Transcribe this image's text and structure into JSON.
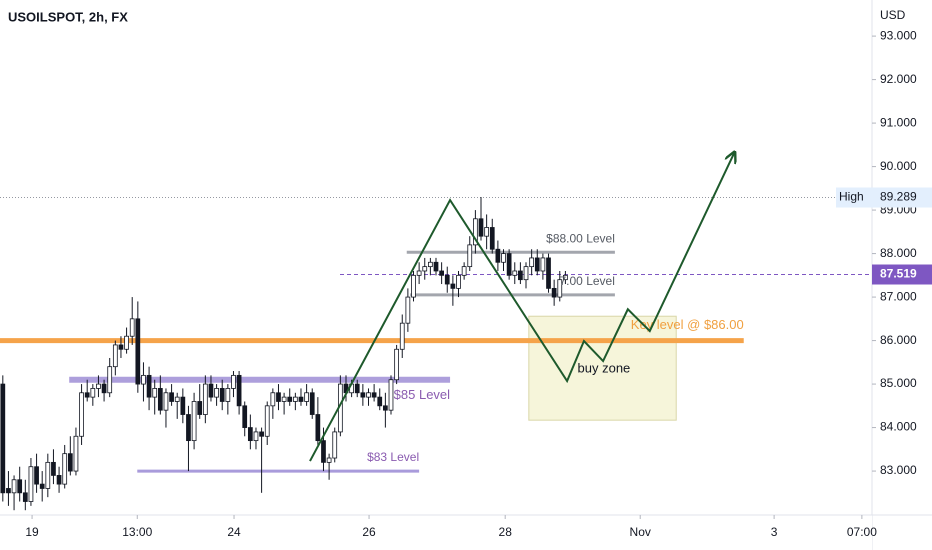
{
  "chart_data": {
    "type": "candlestick",
    "title": "USOILSPOT, 2h, FX",
    "currency": "USD",
    "xlim": [
      -0.5,
      154.5
    ],
    "xticks": [
      {
        "value": 5.2,
        "label": "19"
      },
      {
        "value": 23.9,
        "label": "13:00"
      },
      {
        "value": 41.1,
        "label": "24"
      },
      {
        "value": 65.1,
        "label": "26"
      },
      {
        "value": 89.3,
        "label": "28"
      },
      {
        "value": 113.3,
        "label": "Nov"
      },
      {
        "value": 137.1,
        "label": "3"
      },
      {
        "value": 152.7,
        "label": "07:00"
      }
    ],
    "ylim": [
      81.99,
      93.83
    ],
    "yticks": [
      {
        "value": 83,
        "label": "83.000"
      },
      {
        "value": 84,
        "label": "84.000"
      },
      {
        "value": 85,
        "label": "85.000"
      },
      {
        "value": 86,
        "label": "86.000"
      },
      {
        "value": 87,
        "label": "87.000"
      },
      {
        "value": 88,
        "label": "88.000"
      },
      {
        "value": 89,
        "label": "89.000"
      },
      {
        "value": 90,
        "label": "90.000"
      },
      {
        "value": 91,
        "label": "91.000"
      },
      {
        "value": 92,
        "label": "92.000"
      },
      {
        "value": 93,
        "label": "93.000"
      }
    ],
    "up_color": "#ffffff",
    "down_color": "#131722",
    "ohlc": [
      [
        85.0,
        85.2,
        82.3,
        82.5
      ],
      [
        82.6,
        83.0,
        82.2,
        82.5
      ],
      [
        82.5,
        82.9,
        82.1,
        82.8
      ],
      [
        82.8,
        83.1,
        82.3,
        82.5
      ],
      [
        82.5,
        82.8,
        82.1,
        82.3
      ],
      [
        82.3,
        83.3,
        82.2,
        83.1
      ],
      [
        83.1,
        83.4,
        82.5,
        82.7
      ],
      [
        82.7,
        83.0,
        82.3,
        82.6
      ],
      [
        82.6,
        83.4,
        82.4,
        83.2
      ],
      [
        83.2,
        83.5,
        82.7,
        82.9
      ],
      [
        82.9,
        83.1,
        82.5,
        82.7
      ],
      [
        82.7,
        83.6,
        82.6,
        83.4
      ],
      [
        83.4,
        83.8,
        82.9,
        83.0
      ],
      [
        83.0,
        84.0,
        82.9,
        83.8
      ],
      [
        83.8,
        85.0,
        83.6,
        84.8
      ],
      [
        84.8,
        85.1,
        84.6,
        84.7
      ],
      [
        84.7,
        85.0,
        84.5,
        84.9
      ],
      [
        84.9,
        85.2,
        84.7,
        85.0
      ],
      [
        85.0,
        85.1,
        84.6,
        84.8
      ],
      [
        84.8,
        85.6,
        84.7,
        85.4
      ],
      [
        85.4,
        86.0,
        85.2,
        85.9
      ],
      [
        85.9,
        86.1,
        85.6,
        85.8
      ],
      [
        85.8,
        86.3,
        85.7,
        86.1
      ],
      [
        86.1,
        87.0,
        85.9,
        86.5
      ],
      [
        86.5,
        86.9,
        84.8,
        85.0
      ],
      [
        85.0,
        85.5,
        84.6,
        85.2
      ],
      [
        85.2,
        85.4,
        84.4,
        84.7
      ],
      [
        84.7,
        85.1,
        84.3,
        84.9
      ],
      [
        84.9,
        85.2,
        84.3,
        84.4
      ],
      [
        84.4,
        84.9,
        84.0,
        84.8
      ],
      [
        84.8,
        85.0,
        84.5,
        84.6
      ],
      [
        84.6,
        84.8,
        84.2,
        84.7
      ],
      [
        84.7,
        84.9,
        84.1,
        84.3
      ],
      [
        84.3,
        84.5,
        83.0,
        83.7
      ],
      [
        83.7,
        84.8,
        83.5,
        84.6
      ],
      [
        84.6,
        85.0,
        84.2,
        84.3
      ],
      [
        84.3,
        85.2,
        84.1,
        85.0
      ],
      [
        85.0,
        85.2,
        84.6,
        84.7
      ],
      [
        84.7,
        85.0,
        84.5,
        84.9
      ],
      [
        84.9,
        85.1,
        84.4,
        84.6
      ],
      [
        84.6,
        85.0,
        84.3,
        84.9
      ],
      [
        84.9,
        85.3,
        84.7,
        85.2
      ],
      [
        85.2,
        85.3,
        84.3,
        84.5
      ],
      [
        84.5,
        84.6,
        83.8,
        84.0
      ],
      [
        84.0,
        84.3,
        83.5,
        83.7
      ],
      [
        83.7,
        84.0,
        83.5,
        83.9
      ],
      [
        83.9,
        84.0,
        82.5,
        83.8
      ],
      [
        83.8,
        84.6,
        83.6,
        84.5
      ],
      [
        84.5,
        84.9,
        84.2,
        84.8
      ],
      [
        84.8,
        85.0,
        84.4,
        84.6
      ],
      [
        84.6,
        84.8,
        84.3,
        84.7
      ],
      [
        84.7,
        84.9,
        84.5,
        84.6
      ],
      [
        84.6,
        84.8,
        84.4,
        84.7
      ],
      [
        84.7,
        84.9,
        84.5,
        84.6
      ],
      [
        84.6,
        85.0,
        84.5,
        84.8
      ],
      [
        84.8,
        84.9,
        84.2,
        84.3
      ],
      [
        84.3,
        84.7,
        83.6,
        83.7
      ],
      [
        83.7,
        84.0,
        83.0,
        83.2
      ],
      [
        83.2,
        83.4,
        82.8,
        83.3
      ],
      [
        83.3,
        84.0,
        83.2,
        83.9
      ],
      [
        83.9,
        85.2,
        83.8,
        85.0
      ],
      [
        85.0,
        85.2,
        84.6,
        84.8
      ],
      [
        84.8,
        85.1,
        84.7,
        85.0
      ],
      [
        85.0,
        85.1,
        84.7,
        84.8
      ],
      [
        84.8,
        85.0,
        84.5,
        84.7
      ],
      [
        84.7,
        84.9,
        84.5,
        84.8
      ],
      [
        84.8,
        85.0,
        84.6,
        84.7
      ],
      [
        84.7,
        84.9,
        84.4,
        84.5
      ],
      [
        84.5,
        84.8,
        84.0,
        84.4
      ],
      [
        84.4,
        85.2,
        84.3,
        85.1
      ],
      [
        85.1,
        85.9,
        85.0,
        85.8
      ],
      [
        85.8,
        86.6,
        85.6,
        86.4
      ],
      [
        86.4,
        87.2,
        86.2,
        87.0
      ],
      [
        87.0,
        87.6,
        86.9,
        87.5
      ],
      [
        87.5,
        87.8,
        87.3,
        87.6
      ],
      [
        87.6,
        87.9,
        87.4,
        87.7
      ],
      [
        87.7,
        87.9,
        87.5,
        87.8
      ],
      [
        87.8,
        87.9,
        87.5,
        87.6
      ],
      [
        87.6,
        87.8,
        87.3,
        87.5
      ],
      [
        87.5,
        87.7,
        87.1,
        87.3
      ],
      [
        87.3,
        87.5,
        86.8,
        87.2
      ],
      [
        87.2,
        87.6,
        87.0,
        87.5
      ],
      [
        87.5,
        87.8,
        87.4,
        87.7
      ],
      [
        87.7,
        88.4,
        87.6,
        88.2
      ],
      [
        88.2,
        89.0,
        88.0,
        88.8
      ],
      [
        88.8,
        89.3,
        88.3,
        88.4
      ],
      [
        88.4,
        88.9,
        88.1,
        88.6
      ],
      [
        88.6,
        88.8,
        88.0,
        88.1
      ],
      [
        88.1,
        88.3,
        87.6,
        87.8
      ],
      [
        87.8,
        88.1,
        87.6,
        88.0
      ],
      [
        88.0,
        88.1,
        87.4,
        87.5
      ],
      [
        87.5,
        87.8,
        87.3,
        87.6
      ],
      [
        87.6,
        87.8,
        87.3,
        87.4
      ],
      [
        87.4,
        87.8,
        87.2,
        87.7
      ],
      [
        87.7,
        88.1,
        87.5,
        87.9
      ],
      [
        87.9,
        88.1,
        87.5,
        87.6
      ],
      [
        87.6,
        88.0,
        87.4,
        87.9
      ],
      [
        87.9,
        88.0,
        87.1,
        87.2
      ],
      [
        87.2,
        87.4,
        86.8,
        87.0
      ],
      [
        87.0,
        87.6,
        86.9,
        87.4
      ],
      [
        87.4,
        87.6,
        87.3,
        87.5
      ]
    ],
    "last_price": 87.519,
    "last_price_color": "#7e57c2",
    "high": {
      "label": "High",
      "value": 89.289
    },
    "levels": [
      {
        "label": "Key level @ $86.00",
        "value": 86.0,
        "x": [
          -0.5,
          131.7
        ],
        "color": "#f5a34a"
      },
      {
        "label": "$85 Level",
        "value": 85.1,
        "x": [
          11.8,
          79.5
        ],
        "color": "#9f8fd6"
      },
      {
        "label": "$83 Level",
        "value": 83.0,
        "x": [
          23.9,
          74.0
        ],
        "color": "#a99bdb"
      },
      {
        "label": "$88.00 Level",
        "value": 88.03,
        "x": [
          71.8,
          108.8
        ],
        "color": "#a3a6ad"
      },
      {
        "label": "7.00 Level",
        "value": 87.05,
        "x": [
          72.4,
          108.8
        ],
        "color": "#a3a6ad"
      }
    ],
    "zone": {
      "label": "buy zone",
      "x": [
        93.5,
        119.7
      ],
      "y": [
        86.56,
        84.17
      ],
      "color": "#f6f5da"
    },
    "projection": {
      "x": [
        54.6,
        79.5,
        100.3,
        103.3,
        106.7,
        111.1,
        115.0,
        130.0
      ],
      "y": [
        83.23,
        89.23,
        85.07,
        85.99,
        85.53,
        86.72,
        86.22,
        90.31
      ],
      "color": "#1e5a2c"
    }
  }
}
